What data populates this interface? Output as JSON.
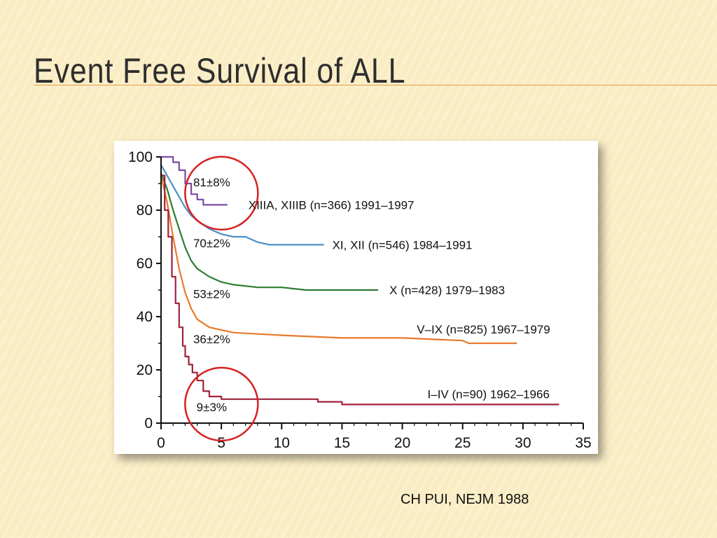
{
  "slide": {
    "title": "Event Free Survival of ALL",
    "citation": "CH PUI, NEJM 1988"
  },
  "colors": {
    "background": "#faedc4",
    "title_rule": "#e89a4c",
    "highlight_circle": "#d62020"
  },
  "chart_data": {
    "type": "line",
    "title": "",
    "xlabel": "",
    "ylabel": "",
    "xlim": [
      0,
      35
    ],
    "ylim": [
      0,
      100
    ],
    "x_ticks": [
      "0",
      "5",
      "10",
      "15",
      "20",
      "25",
      "30",
      "35"
    ],
    "y_ticks": [
      "0",
      "20",
      "40",
      "60",
      "80",
      "100"
    ],
    "grid": false,
    "series": [
      {
        "name": "XIIIA, XIIIB (n=366) 1991–1997",
        "color": "#7a4ba3",
        "step": true,
        "points": [
          [
            0,
            100
          ],
          [
            1,
            98
          ],
          [
            1.5,
            95
          ],
          [
            2,
            90
          ],
          [
            2.5,
            86
          ],
          [
            3,
            84
          ],
          [
            3.5,
            82
          ],
          [
            5.5,
            82
          ]
        ]
      },
      {
        "name": "XI, XII (n=546) 1984–1991",
        "color": "#4a8fc8",
        "step": false,
        "points": [
          [
            0,
            97
          ],
          [
            0.5,
            93
          ],
          [
            1,
            89
          ],
          [
            1.5,
            85
          ],
          [
            2,
            81
          ],
          [
            2.5,
            78
          ],
          [
            3,
            76
          ],
          [
            4,
            73
          ],
          [
            5,
            71
          ],
          [
            6,
            70
          ],
          [
            7,
            70
          ],
          [
            8,
            68
          ],
          [
            9,
            67
          ],
          [
            10,
            67
          ],
          [
            13.5,
            67
          ]
        ]
      },
      {
        "name": "X (n=428) 1979–1983",
        "color": "#2e7d32",
        "step": false,
        "points": [
          [
            0,
            94
          ],
          [
            0.5,
            88
          ],
          [
            1,
            80
          ],
          [
            1.5,
            73
          ],
          [
            2,
            66
          ],
          [
            2.5,
            61
          ],
          [
            3,
            58
          ],
          [
            4,
            55
          ],
          [
            5,
            53
          ],
          [
            6,
            52
          ],
          [
            8,
            51
          ],
          [
            10,
            51
          ],
          [
            12,
            50
          ],
          [
            18,
            50
          ]
        ]
      },
      {
        "name": "V–IX (n=825) 1967–1979",
        "color": "#e87a2b",
        "step": false,
        "points": [
          [
            0,
            93
          ],
          [
            0.5,
            83
          ],
          [
            1,
            70
          ],
          [
            1.5,
            58
          ],
          [
            2,
            49
          ],
          [
            2.5,
            43
          ],
          [
            3,
            39
          ],
          [
            4,
            36
          ],
          [
            5,
            35
          ],
          [
            6,
            34
          ],
          [
            8,
            33.5
          ],
          [
            10,
            33
          ],
          [
            15,
            32
          ],
          [
            20,
            32
          ],
          [
            25,
            31
          ],
          [
            25.5,
            30
          ],
          [
            29.5,
            30
          ]
        ]
      },
      {
        "name": "I–IV (n=90) 1962–1966",
        "color": "#a0223a",
        "step": true,
        "points": [
          [
            0,
            93
          ],
          [
            0.3,
            80
          ],
          [
            0.6,
            70
          ],
          [
            0.9,
            55
          ],
          [
            1.2,
            45
          ],
          [
            1.5,
            36
          ],
          [
            1.8,
            29
          ],
          [
            2,
            25
          ],
          [
            2.3,
            22
          ],
          [
            2.6,
            19
          ],
          [
            3,
            16
          ],
          [
            3.5,
            12
          ],
          [
            4,
            10
          ],
          [
            5,
            9
          ],
          [
            6,
            9
          ],
          [
            13,
            8
          ],
          [
            15,
            7
          ],
          [
            20,
            7
          ],
          [
            33,
            7
          ]
        ]
      }
    ],
    "series_labels": [
      "XIIIA, XIIIB (n=366) 1991–1997",
      "XI, XII (n=546) 1984–1991",
      "X (n=428) 1979–1983",
      "V–IX (n=825) 1967–1979",
      "I–IV (n=90) 1962–1966"
    ],
    "annotations": [
      {
        "text": "81±8%",
        "x": 4.2,
        "y": 89
      },
      {
        "text": "70±2%",
        "x": 4.2,
        "y": 66
      },
      {
        "text": "53±2%",
        "x": 4.2,
        "y": 47
      },
      {
        "text": "36±2%",
        "x": 4.2,
        "y": 30
      },
      {
        "text": "9±3%",
        "x": 4.2,
        "y": 4.5
      }
    ]
  }
}
